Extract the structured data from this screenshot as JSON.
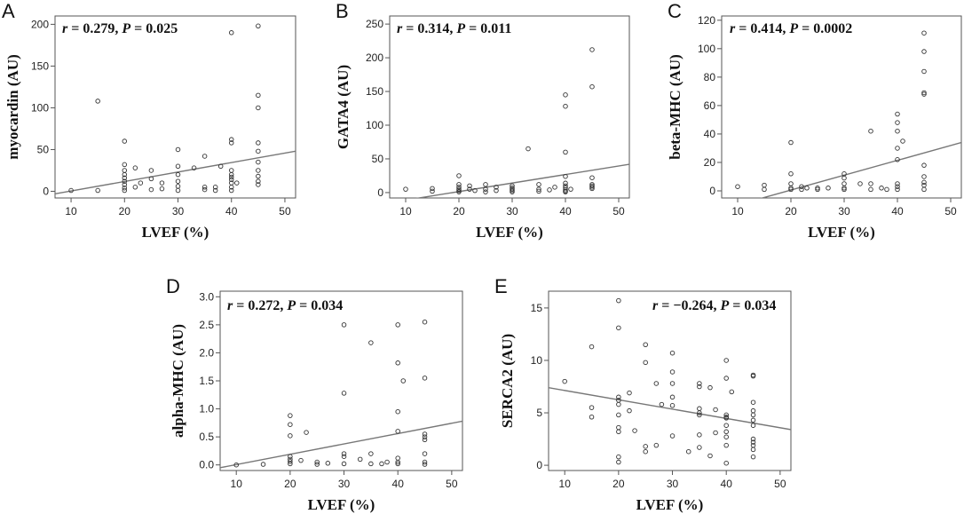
{
  "chart_data": [
    {
      "type": "scatter",
      "panel_label": "A",
      "xlabel": "LVEF (%)",
      "ylabel": "myocardin (AU)",
      "xlim": [
        7,
        52
      ],
      "ylim": [
        -8,
        210
      ],
      "xticks": [
        10,
        20,
        30,
        40,
        50
      ],
      "yticks": [
        0,
        50,
        100,
        150,
        200
      ],
      "annotation": {
        "r_label": "r",
        "r_value": " = 0.279, ",
        "p_label": "P",
        "p_value": " = 0.025"
      },
      "regression": {
        "x": [
          7,
          52
        ],
        "y": [
          -3,
          48
        ]
      },
      "points": [
        [
          10,
          1
        ],
        [
          15,
          1
        ],
        [
          15,
          108
        ],
        [
          20,
          60
        ],
        [
          20,
          32
        ],
        [
          20,
          25
        ],
        [
          20,
          20
        ],
        [
          20,
          16
        ],
        [
          20,
          12
        ],
        [
          20,
          8
        ],
        [
          20,
          4
        ],
        [
          20,
          1
        ],
        [
          22,
          28
        ],
        [
          22,
          5
        ],
        [
          23,
          10
        ],
        [
          25,
          25
        ],
        [
          25,
          15
        ],
        [
          25,
          2
        ],
        [
          27,
          10
        ],
        [
          27,
          3
        ],
        [
          30,
          50
        ],
        [
          30,
          30
        ],
        [
          30,
          20
        ],
        [
          30,
          12
        ],
        [
          30,
          6
        ],
        [
          30,
          1
        ],
        [
          33,
          28
        ],
        [
          35,
          42
        ],
        [
          35,
          5
        ],
        [
          35,
          2
        ],
        [
          37,
          5
        ],
        [
          37,
          1
        ],
        [
          38,
          30
        ],
        [
          40,
          190
        ],
        [
          40,
          62
        ],
        [
          40,
          58
        ],
        [
          40,
          25
        ],
        [
          40,
          20
        ],
        [
          40,
          17
        ],
        [
          40,
          14
        ],
        [
          40,
          10
        ],
        [
          40,
          5
        ],
        [
          40,
          1
        ],
        [
          41,
          10
        ],
        [
          45,
          198
        ],
        [
          45,
          115
        ],
        [
          45,
          100
        ],
        [
          45,
          58
        ],
        [
          45,
          48
        ],
        [
          45,
          35
        ],
        [
          45,
          25
        ],
        [
          45,
          18
        ],
        [
          45,
          12
        ],
        [
          45,
          8
        ]
      ]
    },
    {
      "type": "scatter",
      "panel_label": "B",
      "xlabel": "LVEF (%)",
      "ylabel": "GATA4 (AU)",
      "xlim": [
        7,
        52
      ],
      "ylim": [
        -8,
        262
      ],
      "xticks": [
        10,
        20,
        30,
        40,
        50
      ],
      "yticks": [
        0,
        50,
        100,
        150,
        200,
        250
      ],
      "annotation": {
        "r_label": "r",
        "r_value": " = 0.314, ",
        "p_label": "P",
        "p_value": " = 0.011"
      },
      "regression": {
        "x": [
          7,
          52
        ],
        "y": [
          -15,
          42
        ]
      },
      "points": [
        [
          10,
          5
        ],
        [
          15,
          6
        ],
        [
          15,
          2
        ],
        [
          20,
          25
        ],
        [
          20,
          12
        ],
        [
          20,
          8
        ],
        [
          20,
          5
        ],
        [
          20,
          3
        ],
        [
          20,
          1
        ],
        [
          22,
          10
        ],
        [
          22,
          5
        ],
        [
          23,
          3
        ],
        [
          25,
          12
        ],
        [
          25,
          5
        ],
        [
          25,
          1
        ],
        [
          27,
          8
        ],
        [
          27,
          3
        ],
        [
          30,
          10
        ],
        [
          30,
          7
        ],
        [
          30,
          5
        ],
        [
          30,
          3
        ],
        [
          30,
          1
        ],
        [
          33,
          65
        ],
        [
          35,
          12
        ],
        [
          35,
          5
        ],
        [
          35,
          2
        ],
        [
          37,
          4
        ],
        [
          38,
          8
        ],
        [
          40,
          145
        ],
        [
          40,
          128
        ],
        [
          40,
          60
        ],
        [
          40,
          24
        ],
        [
          40,
          14
        ],
        [
          40,
          10
        ],
        [
          40,
          7
        ],
        [
          40,
          4
        ],
        [
          40,
          2
        ],
        [
          40,
          1
        ],
        [
          41,
          5
        ],
        [
          45,
          212
        ],
        [
          45,
          157
        ],
        [
          45,
          22
        ],
        [
          45,
          12
        ],
        [
          45,
          10
        ],
        [
          45,
          8
        ],
        [
          45,
          6
        ]
      ]
    },
    {
      "type": "scatter",
      "panel_label": "C",
      "xlabel": "LVEF (%)",
      "ylabel": "beta-MHC (AU)",
      "xlim": [
        7,
        52
      ],
      "ylim": [
        -5,
        123
      ],
      "xticks": [
        10,
        20,
        30,
        40,
        50
      ],
      "yticks": [
        0,
        20,
        40,
        60,
        80,
        100,
        120
      ],
      "annotation": {
        "r_label": "r",
        "r_value": " = 0.414, ",
        "p_label": "P",
        "p_value": " = 0.0002"
      },
      "regression": {
        "x": [
          7,
          52
        ],
        "y": [
          -13,
          34
        ]
      },
      "points": [
        [
          10,
          3
        ],
        [
          15,
          4
        ],
        [
          15,
          1
        ],
        [
          20,
          34
        ],
        [
          20,
          12
        ],
        [
          20,
          5
        ],
        [
          20,
          2
        ],
        [
          20,
          1
        ],
        [
          22,
          3
        ],
        [
          22,
          1
        ],
        [
          23,
          2
        ],
        [
          25,
          1
        ],
        [
          25,
          2
        ],
        [
          27,
          2
        ],
        [
          30,
          12
        ],
        [
          30,
          9
        ],
        [
          30,
          5
        ],
        [
          30,
          2
        ],
        [
          30,
          1
        ],
        [
          33,
          5
        ],
        [
          35,
          42
        ],
        [
          35,
          5
        ],
        [
          35,
          1
        ],
        [
          37,
          2
        ],
        [
          38,
          1
        ],
        [
          40,
          54
        ],
        [
          40,
          48
        ],
        [
          40,
          42
        ],
        [
          40,
          30
        ],
        [
          40,
          22
        ],
        [
          40,
          5
        ],
        [
          40,
          3
        ],
        [
          40,
          1
        ],
        [
          41,
          35
        ],
        [
          45,
          111
        ],
        [
          45,
          98
        ],
        [
          45,
          84
        ],
        [
          45,
          69
        ],
        [
          45,
          68
        ],
        [
          45,
          18
        ],
        [
          45,
          10
        ],
        [
          45,
          6
        ],
        [
          45,
          4
        ],
        [
          45,
          1
        ]
      ]
    },
    {
      "type": "scatter",
      "panel_label": "D",
      "xlabel": "LVEF (%)",
      "ylabel": "alpha-MHC (AU)",
      "xlim": [
        7,
        52
      ],
      "ylim": [
        -0.1,
        3.1
      ],
      "xticks": [
        10,
        20,
        30,
        40,
        50
      ],
      "yticks": [
        "0.0",
        "0.5",
        "1.0",
        "1.5",
        "2.0",
        "2.5",
        "3.0"
      ],
      "annotation": {
        "r_label": "r",
        "r_value": " = 0.272, ",
        "p_label": "P",
        "p_value": " = 0.034"
      },
      "regression": {
        "x": [
          7,
          52
        ],
        "y": [
          -0.05,
          0.78
        ]
      },
      "points": [
        [
          10,
          0.0
        ],
        [
          15,
          0.01
        ],
        [
          20,
          0.88
        ],
        [
          20,
          0.72
        ],
        [
          20,
          0.52
        ],
        [
          20,
          0.15
        ],
        [
          20,
          0.1
        ],
        [
          20,
          0.06
        ],
        [
          20,
          0.02
        ],
        [
          22,
          0.08
        ],
        [
          23,
          0.58
        ],
        [
          25,
          0.05
        ],
        [
          25,
          0.01
        ],
        [
          27,
          0.03
        ],
        [
          30,
          2.5
        ],
        [
          30,
          1.28
        ],
        [
          30,
          0.2
        ],
        [
          30,
          0.15
        ],
        [
          30,
          0.02
        ],
        [
          33,
          0.1
        ],
        [
          35,
          2.18
        ],
        [
          35,
          0.2
        ],
        [
          35,
          0.02
        ],
        [
          37,
          0.02
        ],
        [
          38,
          0.05
        ],
        [
          40,
          2.5
        ],
        [
          40,
          1.82
        ],
        [
          40,
          0.95
        ],
        [
          40,
          0.6
        ],
        [
          40,
          0.12
        ],
        [
          40,
          0.05
        ],
        [
          40,
          0.02
        ],
        [
          41,
          1.5
        ],
        [
          45,
          2.55
        ],
        [
          45,
          1.55
        ],
        [
          45,
          0.55
        ],
        [
          45,
          0.5
        ],
        [
          45,
          0.45
        ],
        [
          45,
          0.2
        ],
        [
          45,
          0.05
        ],
        [
          45,
          0.01
        ]
      ]
    },
    {
      "type": "scatter",
      "panel_label": "E",
      "xlabel": "LVEF (%)",
      "ylabel": "SERCA2 (AU)",
      "xlim": [
        7,
        52
      ],
      "ylim": [
        -0.5,
        16.6
      ],
      "xticks": [
        10,
        20,
        30,
        40,
        50
      ],
      "yticks": [
        0,
        5,
        10,
        15
      ],
      "annotation": {
        "r_label": "r",
        "r_value": " = −0.264, ",
        "p_label": "P",
        "p_value": " = 0.034"
      },
      "regression": {
        "x": [
          7,
          52
        ],
        "y": [
          7.4,
          3.4
        ]
      },
      "points": [
        [
          10,
          8
        ],
        [
          15,
          11.3
        ],
        [
          15,
          5.5
        ],
        [
          15,
          4.6
        ],
        [
          20,
          15.7
        ],
        [
          20,
          13.1
        ],
        [
          20,
          6.5
        ],
        [
          20,
          6.2
        ],
        [
          20,
          5.8
        ],
        [
          20,
          4.8
        ],
        [
          20,
          3.6
        ],
        [
          20,
          3.2
        ],
        [
          20,
          0.8
        ],
        [
          20,
          0.3
        ],
        [
          22,
          6.9
        ],
        [
          22,
          5.2
        ],
        [
          23,
          3.3
        ],
        [
          25,
          11.5
        ],
        [
          25,
          9.8
        ],
        [
          25,
          1.8
        ],
        [
          25,
          1.3
        ],
        [
          27,
          7.8
        ],
        [
          27,
          1.9
        ],
        [
          28,
          5.8
        ],
        [
          30,
          10.7
        ],
        [
          30,
          8.9
        ],
        [
          30,
          7.8
        ],
        [
          30,
          6.5
        ],
        [
          30,
          5.7
        ],
        [
          30,
          2.8
        ],
        [
          33,
          1.3
        ],
        [
          35,
          7.8
        ],
        [
          35,
          7.5
        ],
        [
          35,
          5.4
        ],
        [
          35,
          5.0
        ],
        [
          35,
          4.8
        ],
        [
          35,
          2.9
        ],
        [
          35,
          1.7
        ],
        [
          37,
          7.4
        ],
        [
          37,
          0.9
        ],
        [
          38,
          5.3
        ],
        [
          38,
          3.1
        ],
        [
          40,
          10
        ],
        [
          40,
          8.3
        ],
        [
          40,
          4.8
        ],
        [
          40,
          4.6
        ],
        [
          40,
          4.5
        ],
        [
          40,
          3.8
        ],
        [
          40,
          3.2
        ],
        [
          40,
          2.7
        ],
        [
          40,
          1.9
        ],
        [
          40,
          0.2
        ],
        [
          41,
          7.0
        ],
        [
          45,
          8.6
        ],
        [
          45,
          8.5
        ],
        [
          45,
          6.0
        ],
        [
          45,
          5.2
        ],
        [
          45,
          4.8
        ],
        [
          45,
          4.3
        ],
        [
          45,
          3.8
        ],
        [
          45,
          2.5
        ],
        [
          45,
          2.2
        ],
        [
          45,
          1.9
        ],
        [
          45,
          1.5
        ],
        [
          45,
          0.8
        ]
      ]
    }
  ]
}
